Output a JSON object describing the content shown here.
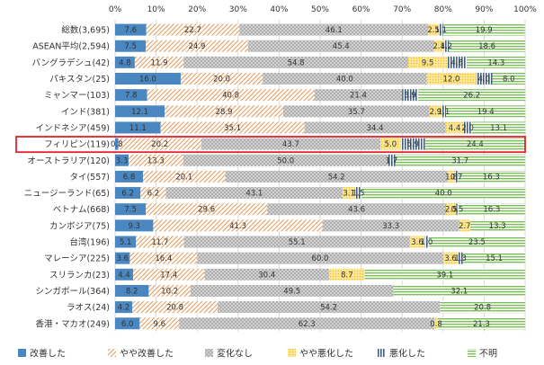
{
  "chart_data": {
    "type": "bar",
    "orientation": "horizontal",
    "stacked": "percent",
    "xlim": [
      0,
      100
    ],
    "x_ticks": [
      "0%",
      "10%",
      "20%",
      "30%",
      "40%",
      "50%",
      "60%",
      "70%",
      "80%",
      "90%",
      "100%"
    ],
    "categories": [
      "総数(3,695)",
      "ASEAN平均(2,594)",
      "バングラデシュ(42)",
      "パキスタン(25)",
      "ミャンマー(103)",
      "インド(381)",
      "インドネシア(459)",
      "フィリピン(119)",
      "オーストラリア(120)",
      "タイ(557)",
      "ニュージーランド(65)",
      "ベトナム(668)",
      "カンボジア(75)",
      "台湾(196)",
      "マレーシア(225)",
      "スリランカ(23)",
      "シンガポール(364)",
      "ラオス(24)",
      "香港・マカオ(249)"
    ],
    "highlight_category": "フィリピン(119)",
    "series": [
      {
        "name": "改善した",
        "color": "#4a86c0",
        "pattern": "solid",
        "values": [
          7.6,
          7.5,
          4.8,
          16.0,
          7.8,
          12.1,
          11.1,
          0.8,
          3.3,
          6.8,
          6.2,
          7.5,
          9.3,
          5.1,
          3.6,
          4.4,
          8.2,
          4.2,
          6.0
        ]
      },
      {
        "name": "やや改善した",
        "color": "#e39a5a",
        "pattern": "diagonal",
        "values": [
          22.7,
          24.9,
          11.9,
          20.0,
          40.8,
          28.9,
          35.1,
          20.2,
          13.3,
          20.1,
          6.2,
          29.6,
          41.3,
          11.7,
          16.4,
          17.4,
          10.2,
          20.8,
          9.6
        ]
      },
      {
        "name": "変化なし",
        "color": "#a8a8a8",
        "pattern": "crosshatch",
        "values": [
          46.1,
          45.4,
          54.8,
          40.0,
          21.4,
          35.7,
          34.4,
          43.7,
          50.0,
          54.2,
          43.1,
          43.6,
          33.3,
          55.1,
          60.0,
          30.4,
          49.5,
          54.2,
          62.3
        ]
      },
      {
        "name": "やや悪化した",
        "color": "#f5c518",
        "pattern": "dots",
        "values": [
          2.5,
          2.4,
          9.5,
          12.0,
          0.0,
          2.9,
          4.4,
          5.0,
          0.0,
          1.8,
          3.1,
          2.5,
          2.7,
          3.6,
          3.6,
          8.7,
          0.0,
          0.0,
          0.8
        ]
      },
      {
        "name": "悪化した",
        "color": "#3f5f87",
        "pattern": "vlines",
        "values": [
          1.1,
          1.2,
          4.8,
          4.0,
          3.9,
          1.1,
          2.0,
          5.9,
          1.7,
          0.7,
          1.5,
          0.5,
          0.0,
          1.0,
          1.3,
          0.0,
          0.0,
          0.0,
          0.0
        ]
      },
      {
        "name": "不明",
        "color": "#7bbf5a",
        "pattern": "hlines",
        "values": [
          19.9,
          18.6,
          14.3,
          8.0,
          26.2,
          19.4,
          13.1,
          24.4,
          31.7,
          16.3,
          40.0,
          16.3,
          13.3,
          23.5,
          15.1,
          39.1,
          32.1,
          20.8,
          21.3
        ]
      }
    ],
    "data_labels": [
      [
        "7.6",
        "22.7",
        "46.1",
        "2.5",
        "1.1",
        "19.9"
      ],
      [
        "7.5",
        "24.9",
        "45.4",
        "2.4",
        "1.2",
        "18.6"
      ],
      [
        "4.8",
        "11.9",
        "54.8",
        "9.5",
        "4.8",
        "14.3"
      ],
      [
        "16.0",
        "20.0",
        "40.0",
        "12.0",
        "4.0",
        "8.0"
      ],
      [
        "7.8",
        "40.8",
        "21.4",
        "",
        "3.9",
        "26.2"
      ],
      [
        "12.1",
        "28.9",
        "35.7",
        "2.9",
        "1.1",
        "19.4"
      ],
      [
        "11.1",
        "35.1",
        "34.4",
        "4.4",
        "2.0",
        "13.1"
      ],
      [
        "0.8",
        "20.2",
        "43.7",
        "5.0",
        "5.9",
        "24.4"
      ],
      [
        "3.3",
        "13.3",
        "50.0",
        "",
        "1.7",
        "31.7"
      ],
      [
        "6.8",
        "20.1",
        "54.2",
        "1.8",
        "0.7",
        "16.3"
      ],
      [
        "6.2",
        "6.2",
        "43.1",
        "3.1",
        "1.5",
        "40.0"
      ],
      [
        "7.5",
        "29.6",
        "43.6",
        "2.5",
        "0.5",
        "16.3"
      ],
      [
        "9.3",
        "41.3",
        "33.3",
        "2.7",
        "",
        "13.3"
      ],
      [
        "5.1",
        "11.7",
        "55.1",
        "3.6",
        "1.0",
        "23.5"
      ],
      [
        "3.6",
        "16.4",
        "60.0",
        "3.6",
        "1.3",
        "15.1"
      ],
      [
        "4.4",
        "17.4",
        "30.4",
        "8.7",
        "",
        "39.1"
      ],
      [
        "8.2",
        "10.2",
        "49.5",
        "",
        "",
        "32.1"
      ],
      [
        "4.2",
        "20.8",
        "54.2",
        "",
        "",
        "20.8"
      ],
      [
        "6.0",
        "9.6",
        "62.3",
        "0.8",
        "",
        "21.3"
      ]
    ],
    "legend_position": "bottom",
    "grid": true
  }
}
